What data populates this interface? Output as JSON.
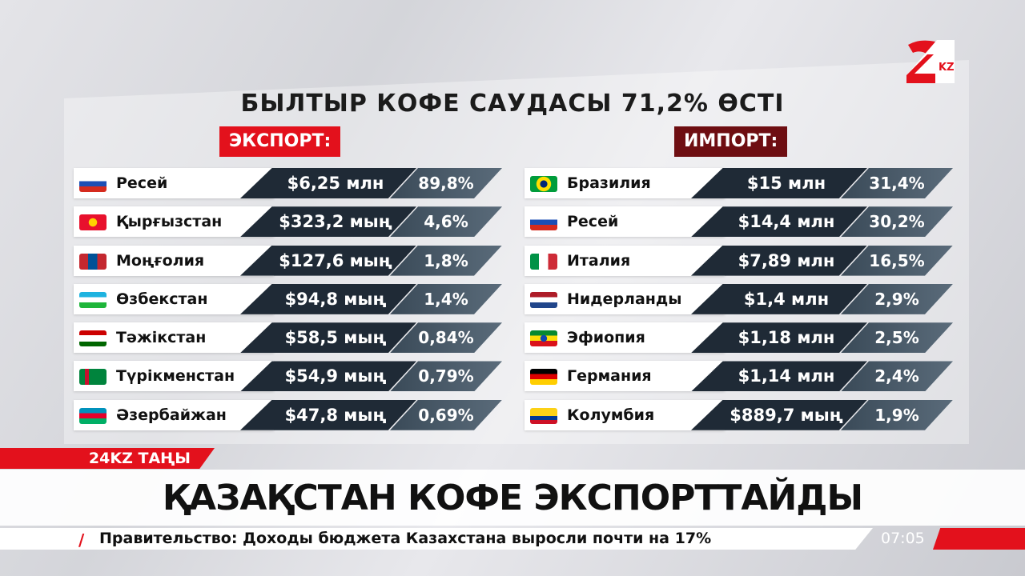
{
  "title": "БЫЛТЫР КОФЕ САУДАСЫ 71,2% ӨСТІ",
  "export": {
    "label": "ЭКСПОРТ:",
    "rows": [
      {
        "country": "Ресей",
        "flag": "russia-flag",
        "value": "$6,25 млн",
        "share": "89,8%"
      },
      {
        "country": "Қырғызстан",
        "flag": "kyrgyzstan-flag",
        "value": "$323,2 мың",
        "share": "4,6%"
      },
      {
        "country": "Моңғолия",
        "flag": "mongolia-flag",
        "value": "$127,6 мың",
        "share": "1,8%"
      },
      {
        "country": "Өзбекстан",
        "flag": "uzbekistan-flag",
        "value": "$94,8 мың",
        "share": "1,4%"
      },
      {
        "country": "Тәжікстан",
        "flag": "tajikistan-flag",
        "value": "$58,5 мың",
        "share": "0,84%"
      },
      {
        "country": "Түрікменстан",
        "flag": "turkmenistan-flag",
        "value": "$54,9 мың",
        "share": "0,79%"
      },
      {
        "country": "Әзербайжан",
        "flag": "azerbaijan-flag",
        "value": "$47,8 мың",
        "share": "0,69%"
      }
    ]
  },
  "import": {
    "label": "ИМПОРТ:",
    "rows": [
      {
        "country": "Бразилия",
        "flag": "brazil-flag",
        "value": "$15 млн",
        "share": "31,4%"
      },
      {
        "country": "Ресей",
        "flag": "russia-flag",
        "value": "$14,4 млн",
        "share": "30,2%"
      },
      {
        "country": "Италия",
        "flag": "italy-flag",
        "value": "$7,89 млн",
        "share": "16,5%"
      },
      {
        "country": "Нидерланды",
        "flag": "netherlands-flag",
        "value": "$1,4 млн",
        "share": "2,9%"
      },
      {
        "country": "Эфиопия",
        "flag": "ethiopia-flag",
        "value": "$1,18 млн",
        "share": "2,5%"
      },
      {
        "country": "Германия",
        "flag": "germany-flag",
        "value": "$1,14 млн",
        "share": "2,4%"
      },
      {
        "country": "Колумбия",
        "flag": "colombia-flag",
        "value": "$889,7 мың",
        "share": "1,9%"
      }
    ]
  },
  "logo": {
    "text": "24 KZ"
  },
  "program_tag": "24KZ ТАҢЫ",
  "headline": "ҚАЗАҚСТАН КОФЕ ЭКСПОРТТАЙДЫ",
  "ticker": "Правительство: Доходы бюджета Казахстана выросли почти на 17%",
  "time": "07:05",
  "colors": {
    "accent": "#e3111c",
    "import_header": "#6e0e12",
    "value_bg": "#1f2a36"
  }
}
